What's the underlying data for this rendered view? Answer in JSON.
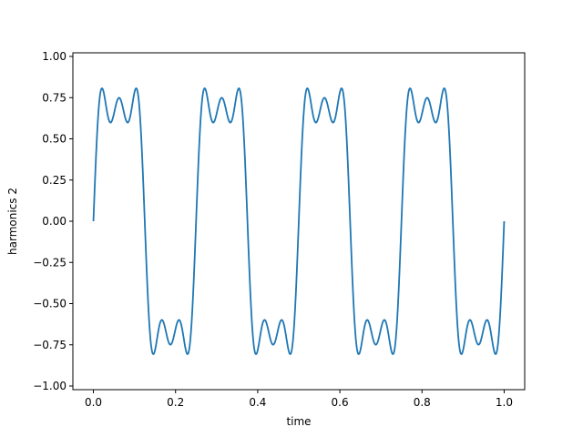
{
  "chart_data": {
    "type": "line",
    "title": "",
    "xlabel": "time",
    "ylabel": "harmonics 2",
    "xlim": [
      -0.05,
      1.05
    ],
    "ylim": [
      -1.0,
      1.0
    ],
    "xticks": [
      0.0,
      0.2,
      0.4,
      0.6,
      0.8,
      1.0
    ],
    "xtick_labels": [
      "0.0",
      "0.2",
      "0.4",
      "0.6",
      "0.8",
      "1.0"
    ],
    "yticks": [
      -1.0,
      -0.75,
      -0.5,
      -0.25,
      0.0,
      0.25,
      0.5,
      0.75,
      1.0
    ],
    "ytick_labels": [
      "−1.00",
      "−0.75",
      "−0.50",
      "−0.25",
      "0.00",
      "0.25",
      "0.50",
      "0.75",
      "1.00"
    ],
    "grid": false,
    "series": [
      {
        "function": "square-wave partial Fourier sum (odd harmonics 1, 3, 5), 4 periods over t in [0, 1]",
        "period": 0.25,
        "amplitude": 0.93,
        "harmonics": [
          1,
          3,
          5
        ],
        "x_range": [
          0.0,
          1.0
        ],
        "color": "#1f77b4"
      }
    ]
  }
}
